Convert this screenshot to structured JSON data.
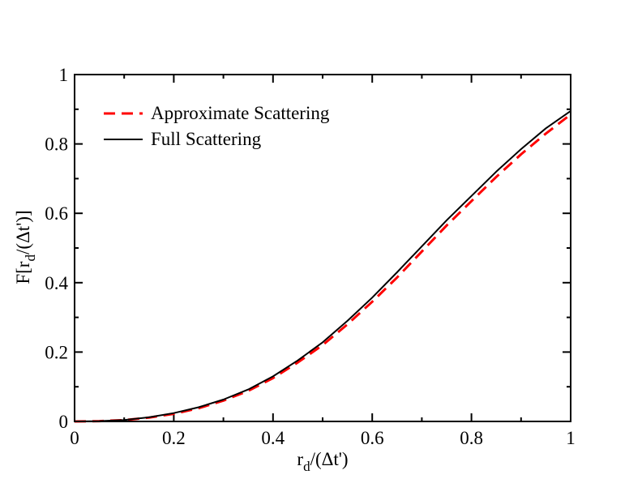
{
  "chart_data": {
    "type": "line",
    "title": "",
    "xlabel": {
      "base": "r",
      "sub": "d",
      "rest": "/(Δt')"
    },
    "ylabel": {
      "open": "F[r",
      "sub": "d",
      "rest": "/(Δt')]"
    },
    "xlim": [
      0,
      1
    ],
    "ylim": [
      0,
      1
    ],
    "xticks": [
      "0",
      "0.2",
      "0.4",
      "0.6",
      "0.8",
      "1"
    ],
    "yticks": [
      "0",
      "0.2",
      "0.4",
      "0.6",
      "0.8",
      "1"
    ],
    "grid": false,
    "legend_position": "top-left",
    "series": [
      {
        "name": "Approximate Scattering",
        "style": "dashed",
        "color": "#ff0000",
        "x": [
          0,
          0.05,
          0.1,
          0.15,
          0.2,
          0.25,
          0.3,
          0.35,
          0.4,
          0.45,
          0.5,
          0.55,
          0.6,
          0.65,
          0.7,
          0.75,
          0.8,
          0.85,
          0.9,
          0.95,
          1.0
        ],
        "y": [
          0,
          0.001,
          0.004,
          0.011,
          0.022,
          0.038,
          0.06,
          0.088,
          0.125,
          0.17,
          0.22,
          0.28,
          0.345,
          0.415,
          0.49,
          0.565,
          0.635,
          0.705,
          0.77,
          0.83,
          0.885
        ]
      },
      {
        "name": "Full Scattering",
        "style": "solid",
        "color": "#000000",
        "x": [
          0,
          0.05,
          0.1,
          0.15,
          0.2,
          0.25,
          0.3,
          0.35,
          0.4,
          0.45,
          0.5,
          0.55,
          0.6,
          0.65,
          0.7,
          0.75,
          0.8,
          0.85,
          0.9,
          0.95,
          1.0
        ],
        "y": [
          0,
          0.001,
          0.004,
          0.012,
          0.024,
          0.041,
          0.063,
          0.092,
          0.13,
          0.176,
          0.228,
          0.29,
          0.357,
          0.43,
          0.505,
          0.58,
          0.65,
          0.72,
          0.785,
          0.845,
          0.895
        ]
      }
    ]
  }
}
